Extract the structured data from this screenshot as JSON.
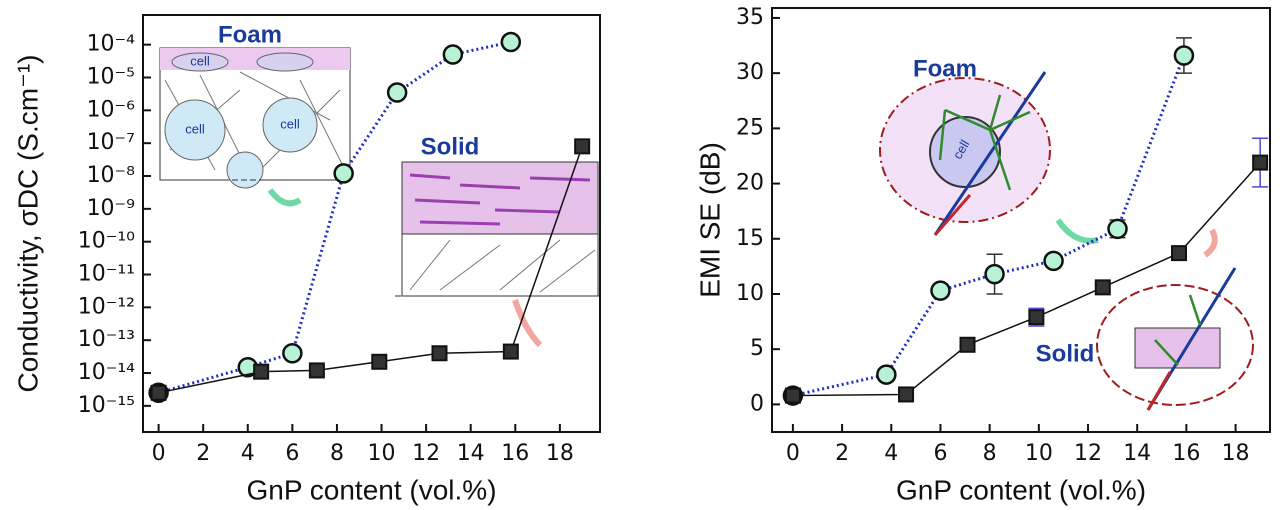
{
  "chart_data": [
    {
      "type": "line",
      "x_label": "GnP content (vol.%)",
      "y_label": "Conductivity, σDC (S.cm⁻¹)",
      "log_y": true,
      "xlim": [
        -0.7,
        19.8
      ],
      "ylim": [
        1.6e-16,
        0.0008
      ],
      "xticks": [
        0,
        2,
        4,
        6,
        8,
        10,
        12,
        14,
        16,
        18
      ],
      "yticks": [
        {
          "value": 1e-15,
          "label": "10⁻¹⁵"
        },
        {
          "value": 1e-14,
          "label": "10⁻¹⁴"
        },
        {
          "value": 1e-13,
          "label": "10⁻¹³"
        },
        {
          "value": 1e-12,
          "label": "10⁻¹²"
        },
        {
          "value": 1e-11,
          "label": "10⁻¹¹"
        },
        {
          "value": 1e-10,
          "label": "10⁻¹⁰"
        },
        {
          "value": 1e-09,
          "label": "10⁻⁹"
        },
        {
          "value": 1e-08,
          "label": "10⁻⁸"
        },
        {
          "value": 1e-07,
          "label": "10⁻⁷"
        },
        {
          "value": 1e-06,
          "label": "10⁻⁶"
        },
        {
          "value": 1e-05,
          "label": "10⁻⁵"
        },
        {
          "value": 0.0001,
          "label": "10⁻⁴"
        }
      ],
      "annotations": [
        "Foam",
        "Solid",
        "cell"
      ],
      "series": [
        {
          "name": "Foam",
          "color": "#1f2fc4",
          "line_style": "dotted",
          "marker": "circle",
          "marker_color": "#b8f2d4",
          "x": [
            0,
            4,
            6,
            8.3,
            10.7,
            13.2,
            15.8
          ],
          "values": [
            2.5e-15,
            1.5e-14,
            4e-14,
            1.2e-08,
            3.5e-06,
            5e-05,
            0.00012
          ]
        },
        {
          "name": "Solid",
          "color": "#111111",
          "line_style": "solid",
          "marker": "square",
          "marker_color": "#333333",
          "x": [
            0,
            4.6,
            7.1,
            9.9,
            12.6,
            15.8,
            19
          ],
          "values": [
            2.5e-15,
            1.1e-14,
            1.2e-14,
            2.2e-14,
            4e-14,
            4.5e-14,
            8e-08
          ]
        }
      ]
    },
    {
      "type": "line",
      "x_label": "GnP content (vol.%)",
      "y_label": "EMI SE (dB)",
      "log_y": false,
      "xlim": [
        -0.85,
        19.4
      ],
      "ylim": [
        -2.5,
        35.9
      ],
      "xticks": [
        0,
        2,
        4,
        6,
        8,
        10,
        12,
        14,
        16,
        18
      ],
      "yticks": [
        0,
        5,
        10,
        15,
        20,
        25,
        30,
        35
      ],
      "annotations": [
        "Foam",
        "Solid",
        "cell"
      ],
      "series": [
        {
          "name": "Foam",
          "color": "#1f2fc4",
          "line_style": "dotted",
          "marker": "circle",
          "marker_color": "#b8f2d4",
          "x": [
            0,
            3.8,
            6,
            8.2,
            10.6,
            13.2,
            15.9
          ],
          "values": [
            0.8,
            2.7,
            10.3,
            11.8,
            13.0,
            15.9,
            31.6
          ],
          "errors": [
            0,
            0,
            0,
            1.8,
            0.3,
            0.8,
            1.6
          ]
        },
        {
          "name": "Solid",
          "color": "#111111",
          "line_style": "solid",
          "marker": "square",
          "marker_color": "#333333",
          "x": [
            0,
            4.6,
            7.1,
            9.9,
            12.6,
            15.7,
            19
          ],
          "values": [
            0.8,
            0.9,
            5.4,
            7.9,
            10.6,
            13.7,
            21.9
          ],
          "errors": [
            0,
            0,
            0,
            0.8,
            0.3,
            0.5,
            2.2
          ]
        }
      ]
    }
  ]
}
